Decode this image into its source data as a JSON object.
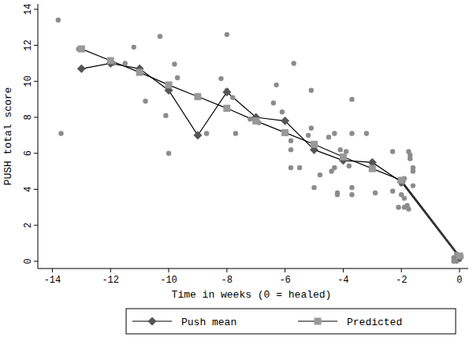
{
  "chart_data": {
    "type": "line",
    "x_label": "Time in weeks (0 = healed)",
    "y_label": "PUSH total score",
    "xlim": [
      -14.5,
      0.3
    ],
    "ylim": [
      -0.4,
      14.3
    ],
    "xticks": [
      -14,
      -12,
      -10,
      -8,
      -6,
      -4,
      -2,
      0
    ],
    "yticks": [
      0,
      2,
      4,
      6,
      8,
      10,
      12,
      14
    ],
    "grid": false,
    "legend": "bottom",
    "series": [
      {
        "type": "scatter",
        "color": "#8c8c8c",
        "marker": "circle",
        "x": [
          -13.1,
          -13.8,
          -13.7,
          -11.9,
          -11.5,
          -11.2,
          -10.8,
          -10.3,
          -10.1,
          -10.0,
          -9.8,
          -9.7,
          -8.2,
          -8.0,
          -8.0,
          -7.8,
          -7.7,
          -8.7,
          -7.2,
          -6.9,
          -6.4,
          -6.3,
          -6.1,
          -5.8,
          -5.7,
          -5.8,
          -5.8,
          -5.5,
          -5.1,
          -5.1,
          -5.2,
          -5.0,
          -4.8,
          -4.5,
          -4.4,
          -4.3,
          -4.3,
          -4.2,
          -4.1,
          -4.2,
          -3.9,
          -3.8,
          -3.7,
          -3.7,
          -3.7,
          -3.7,
          -3.2,
          -2.9,
          -2.3,
          -2.3,
          -2.1,
          -2.0,
          -2.0,
          -1.9,
          -1.8,
          -1.75,
          -1.75,
          -1.7,
          -1.7,
          -1.6,
          -1.6,
          -1.6,
          -1.9,
          -1.9,
          -0.2,
          -0.1,
          0,
          -0.2,
          0.05,
          -0.1
        ],
        "values": [
          11.8,
          13.4,
          7.1,
          11.0,
          11.0,
          11.9,
          8.9,
          12.5,
          8.1,
          6.0,
          10.95,
          10.2,
          10.15,
          12.6,
          9.5,
          9.1,
          7.1,
          7.1,
          7.9,
          7.7,
          8.8,
          9.8,
          8.3,
          6.7,
          11.0,
          6.2,
          5.2,
          5.2,
          9.5,
          7.4,
          7.0,
          4.1,
          4.8,
          6.9,
          5.0,
          7.1,
          5.2,
          3.8,
          6.2,
          3.7,
          6.1,
          5.3,
          9.0,
          7.1,
          4.1,
          3.7,
          7.1,
          3.8,
          6.1,
          3.9,
          3.0,
          3.7,
          4.3,
          3.0,
          3.1,
          2.9,
          6.1,
          5.7,
          5.9,
          5.0,
          4.2,
          5.2,
          4.6,
          3.5,
          0.2,
          0.4,
          0.1,
          0.0,
          0.3,
          0.0
        ]
      },
      {
        "type": "line",
        "name": "Push mean",
        "color": "#555555",
        "marker": "diamond",
        "x": [
          -13,
          -12,
          -11,
          -10,
          -9,
          -8,
          -7,
          -6,
          -5,
          -4,
          -3,
          -2,
          0
        ],
        "values": [
          10.7,
          11.0,
          10.7,
          9.5,
          7.0,
          9.4,
          8.0,
          7.8,
          6.2,
          5.6,
          5.5,
          4.4,
          0.2
        ]
      },
      {
        "type": "line",
        "name": "Predicted",
        "color": "#999999",
        "marker": "square",
        "x": [
          -13,
          -12,
          -11,
          -10,
          -9,
          -8,
          -7,
          -6,
          -5,
          -4,
          -3,
          -2,
          0
        ],
        "values": [
          11.8,
          11.15,
          10.5,
          9.8,
          9.15,
          8.5,
          7.8,
          7.15,
          6.5,
          5.8,
          5.15,
          4.5,
          0.3
        ]
      }
    ]
  }
}
